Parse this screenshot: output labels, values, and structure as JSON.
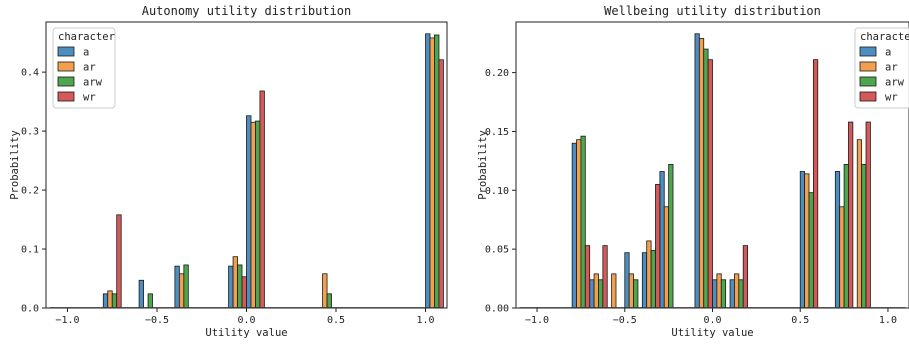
{
  "chart_data": [
    {
      "type": "bar",
      "title": "Autonomy utility distribution",
      "xlabel": "Utility value",
      "ylabel": "Probability",
      "xlim": [
        -1.12,
        1.12
      ],
      "ylim": [
        0,
        0.485
      ],
      "xticks": [
        -1.0,
        -0.5,
        0.0,
        0.5,
        1.0
      ],
      "xtick_labels": [
        "−1.0",
        "−0.5",
        "0.0",
        "0.5",
        "1.0"
      ],
      "yticks": [
        0.0,
        0.1,
        0.2,
        0.3,
        0.4
      ],
      "ytick_labels": [
        "0.0",
        "0.1",
        "0.2",
        "0.3",
        "0.4"
      ],
      "grid": false,
      "legend": {
        "title": "character",
        "placement": "top-left"
      },
      "bins": [
        -0.8,
        -0.6,
        -0.4,
        -0.1,
        0.0,
        0.4,
        1.0
      ],
      "series": [
        {
          "name": "a",
          "color": "#4c8ec0",
          "values": [
            0.024,
            0.047,
            0.071,
            0.071,
            0.326,
            0.0,
            0.465
          ]
        },
        {
          "name": "ar",
          "color": "#f3a04e",
          "values": [
            0.029,
            0.0,
            0.058,
            0.087,
            0.315,
            0.058,
            0.458
          ]
        },
        {
          "name": "arw",
          "color": "#4ea64e",
          "values": [
            0.024,
            0.024,
            0.073,
            0.073,
            0.317,
            0.024,
            0.463
          ]
        },
        {
          "name": "wr",
          "color": "#d45a5a",
          "values": [
            0.158,
            0.0,
            0.0,
            0.053,
            0.368,
            0.0,
            0.421
          ]
        }
      ]
    },
    {
      "type": "bar",
      "title": "Wellbeing utility distribution",
      "xlabel": "Utility value",
      "ylabel": "Probability",
      "xlim": [
        -1.12,
        1.12
      ],
      "ylim": [
        0,
        0.243
      ],
      "xticks": [
        -1.0,
        -0.5,
        0.0,
        0.5,
        1.0
      ],
      "xtick_labels": [
        "−1.0",
        "−0.5",
        "0.0",
        "0.5",
        "1.0"
      ],
      "yticks": [
        0.0,
        0.05,
        0.1,
        0.15,
        0.2
      ],
      "ytick_labels": [
        "0.00",
        "0.05",
        "0.10",
        "0.15",
        "0.20"
      ],
      "grid": false,
      "legend": {
        "title": "character",
        "placement": "top-right"
      },
      "bins": [
        -0.8,
        -0.7,
        -0.6,
        -0.5,
        -0.4,
        -0.3,
        -0.1,
        0.0,
        0.1,
        0.5,
        0.7,
        0.8
      ],
      "series": [
        {
          "name": "a",
          "color": "#4c8ec0",
          "values": [
            0.14,
            0.024,
            0.0,
            0.047,
            0.047,
            0.116,
            0.233,
            0.024,
            0.024,
            0.116,
            0.116,
            0.0
          ]
        },
        {
          "name": "ar",
          "color": "#f3a04e",
          "values": [
            0.143,
            0.029,
            0.029,
            0.029,
            0.057,
            0.086,
            0.229,
            0.029,
            0.029,
            0.114,
            0.086,
            0.143
          ]
        },
        {
          "name": "arw",
          "color": "#4ea64e",
          "values": [
            0.146,
            0.024,
            0.0,
            0.024,
            0.049,
            0.122,
            0.22,
            0.024,
            0.024,
            0.098,
            0.122,
            0.122
          ]
        },
        {
          "name": "wr",
          "color": "#d45a5a",
          "values": [
            0.053,
            0.053,
            0.0,
            0.0,
            0.105,
            0.0,
            0.211,
            0.0,
            0.053,
            0.211,
            0.158,
            0.158
          ]
        }
      ]
    }
  ]
}
